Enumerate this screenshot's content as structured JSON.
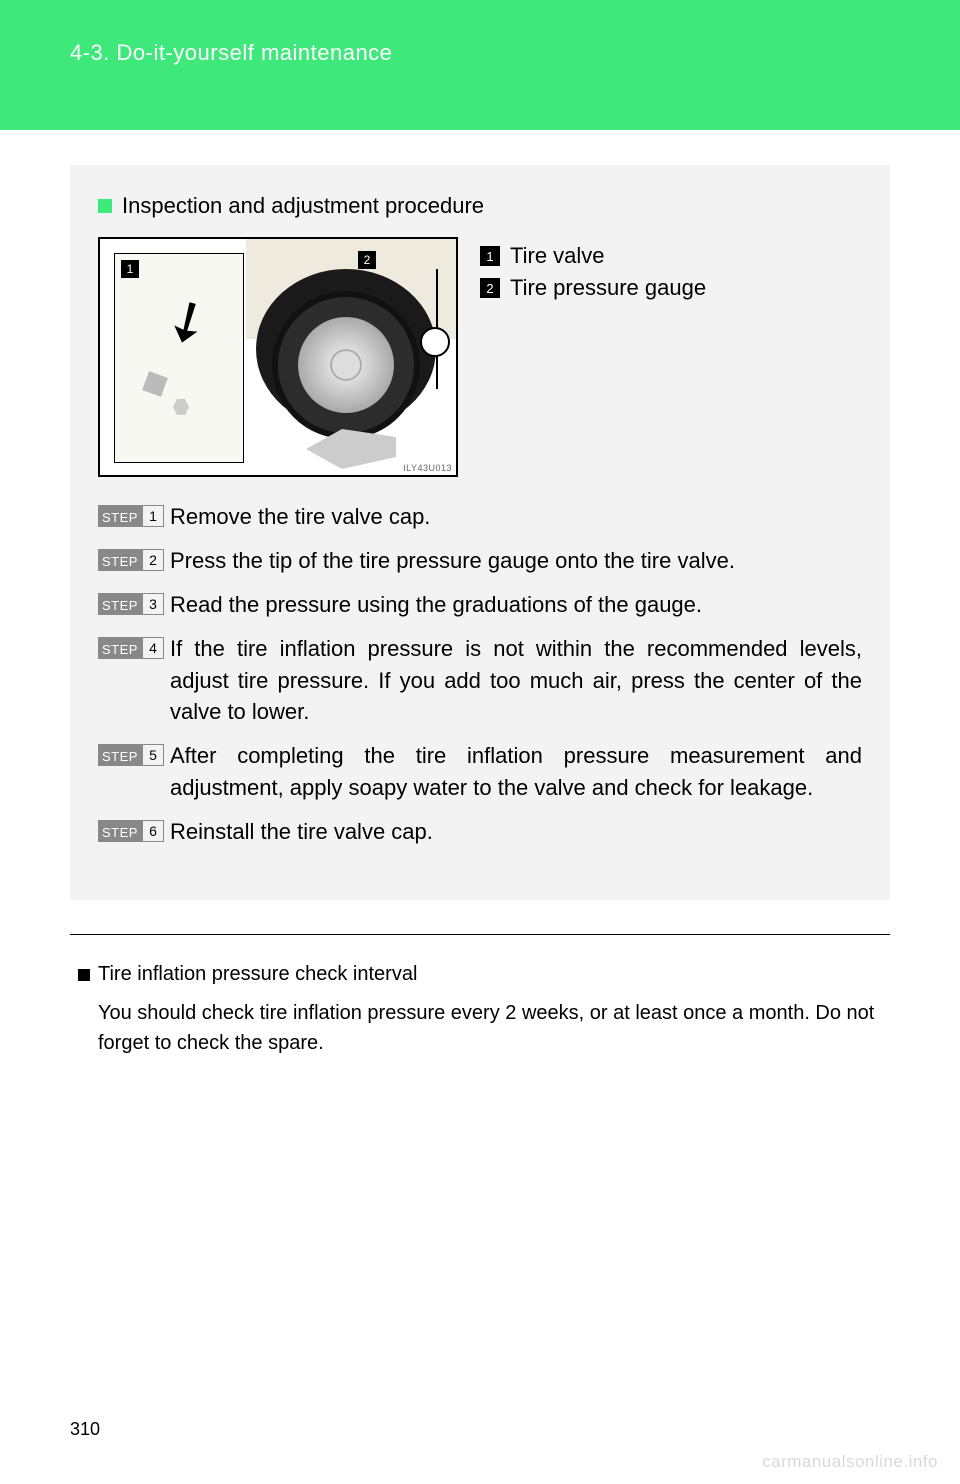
{
  "header": {
    "section_label": "4-3. Do-it-yourself maintenance",
    "background_color": "#3ee87a",
    "text_color": "#ffffff"
  },
  "main_box": {
    "background_color": "#f3f3f3",
    "title": "Inspection and adjustment procedure",
    "title_bullet_color": "#3ee87a",
    "title_fontsize": 22,
    "image": {
      "id_label": "ILY43U013",
      "callouts": [
        {
          "num": "1",
          "position": "top-left-inset"
        },
        {
          "num": "2",
          "position": "top-right-gauge"
        }
      ]
    },
    "legend": [
      {
        "num": "1",
        "text": "Tire valve"
      },
      {
        "num": "2",
        "text": "Tire pressure gauge"
      }
    ],
    "step_label": "STEP",
    "step_label_bg": "#888888",
    "step_label_text_color": "#ffffff",
    "steps": [
      {
        "num": "1",
        "text": "Remove the tire valve cap."
      },
      {
        "num": "2",
        "text": "Press the tip of the tire pressure gauge onto the tire valve."
      },
      {
        "num": "3",
        "text": "Read the pressure using the graduations of the gauge."
      },
      {
        "num": "4",
        "text": "If the tire inflation pressure is not within the recommended levels, adjust tire pressure.\nIf you add too much air, press the center of the valve to lower."
      },
      {
        "num": "5",
        "text": "After completing the tire inflation pressure measurement and adjustment, apply soapy water to the valve and check for leakage."
      },
      {
        "num": "6",
        "text": "Reinstall the tire valve cap."
      }
    ]
  },
  "sub_section": {
    "title": "Tire inflation pressure check interval",
    "bullet_color": "#000000",
    "body": "You should check tire inflation pressure every 2 weeks, or at least once a month. Do not forget to check the spare."
  },
  "page_number": "310",
  "watermark": "carmanualsonline.info"
}
